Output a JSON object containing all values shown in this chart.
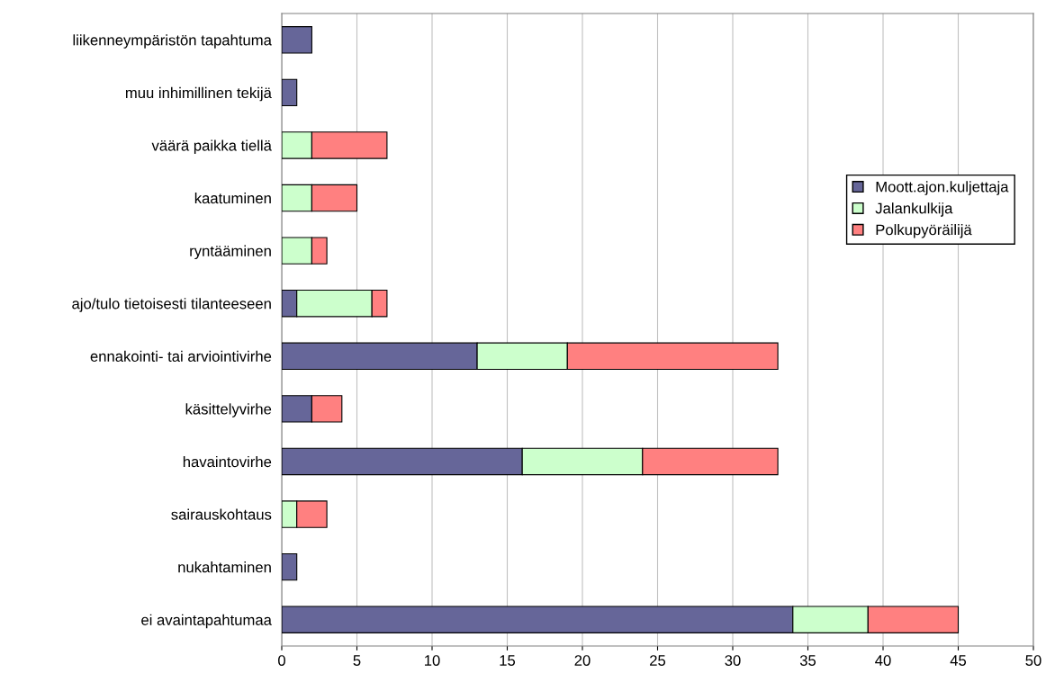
{
  "chart_data": {
    "type": "bar",
    "orientation": "horizontal",
    "stacked": true,
    "categories": [
      "liikenneympäristön tapahtuma",
      "muu inhimillinen tekijä",
      "väärä paikka tiellä",
      "kaatuminen",
      "ryntääminen",
      "ajo/tulo tietoisesti tilanteeseen",
      "ennakointi- tai arviointivirhe",
      "käsittelyvirhe",
      "havaintovirhe",
      "sairauskohtaus",
      "nukahtaminen",
      "ei avaintapahtumaa"
    ],
    "series": [
      {
        "name": "Moott.ajon.kuljettaja",
        "color": "#666699",
        "values": [
          2,
          1,
          null,
          null,
          null,
          1,
          13,
          2,
          16,
          null,
          1,
          34
        ]
      },
      {
        "name": "Jalankulkija",
        "color": "#ccffcc",
        "values": [
          null,
          null,
          2,
          2,
          2,
          5,
          6,
          null,
          8,
          1,
          null,
          5
        ]
      },
      {
        "name": "Polkupyöräilijä",
        "color": "#ff8080",
        "values": [
          null,
          null,
          5,
          3,
          1,
          1,
          14,
          2,
          9,
          2,
          null,
          6
        ]
      }
    ],
    "xlim": [
      0,
      50
    ],
    "xticks": [
      0,
      5,
      10,
      15,
      20,
      25,
      30,
      35,
      40,
      45,
      50
    ],
    "grid": "x",
    "legend": "right"
  }
}
